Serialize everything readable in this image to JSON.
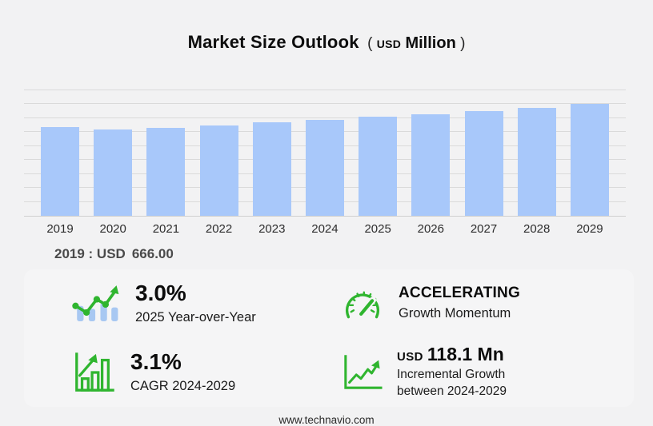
{
  "page": {
    "title": "Market Size Outlook",
    "unit_paren_open": "(",
    "unit_currency": "USD",
    "unit_word": "Million",
    "unit_paren_close": ")",
    "base_year_note_year": "2019 : USD",
    "base_year_note_value": "666.00",
    "footer": "www.technavio.com"
  },
  "chart_data": {
    "type": "bar",
    "title": "Market Size Outlook (USD Million)",
    "categories": [
      "2019",
      "2020",
      "2021",
      "2022",
      "2023",
      "2024",
      "2025",
      "2026",
      "2027",
      "2028",
      "2029"
    ],
    "values": [
      666.0,
      651,
      663,
      680,
      704,
      722.0,
      744,
      766,
      790,
      815,
      840.1
    ],
    "ylabel": "",
    "xlabel": "",
    "ylim": [
      0,
      950
    ],
    "grid": true,
    "legend": "none",
    "bar_color": "#a8c8fa",
    "annotation": "2019 : USD 666.00",
    "unit": "USD Million"
  },
  "stats": [
    {
      "icon": "yoy-trend-icon",
      "value": "3.0%",
      "label": "2025 Year-over-Year"
    },
    {
      "icon": "gauge-icon",
      "value": "ACCELERATING",
      "label": "Growth Momentum"
    },
    {
      "icon": "cagr-bar-chart-icon",
      "value": "3.1%",
      "label": "CAGR 2024-2029"
    },
    {
      "icon": "incremental-growth-icon",
      "value_prefix": "USD",
      "value": "118.1 Mn",
      "label_line1": "Incremental Growth",
      "label_line2": "between 2024-2029"
    }
  ],
  "colors": {
    "background": "#f2f2f3",
    "bar": "#a8c8fa",
    "gridline": "#dadada",
    "accent_green": "#2fb52f",
    "icon_blue": "#a8c8f2",
    "note_gray": "#4a4a4a"
  }
}
